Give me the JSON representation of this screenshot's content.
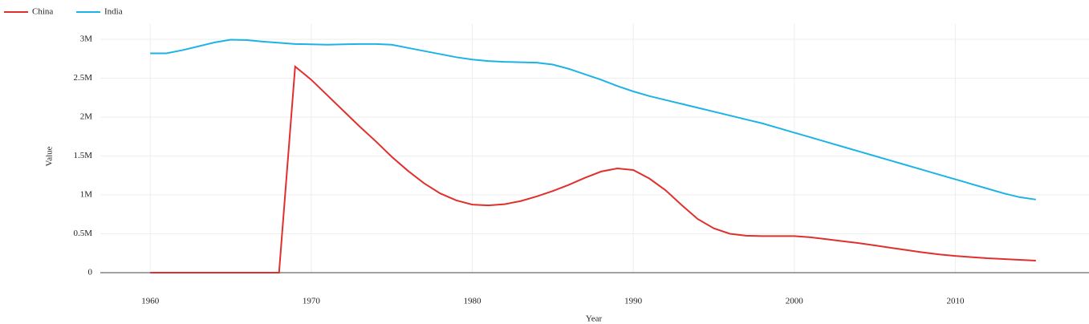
{
  "chart_data": {
    "type": "line",
    "x_label": "Year",
    "y_label": "Value",
    "x": [
      1960,
      1961,
      1962,
      1963,
      1964,
      1965,
      1966,
      1967,
      1968,
      1969,
      1970,
      1971,
      1972,
      1973,
      1974,
      1975,
      1976,
      1977,
      1978,
      1979,
      1980,
      1981,
      1982,
      1983,
      1984,
      1985,
      1986,
      1987,
      1988,
      1989,
      1990,
      1991,
      1992,
      1993,
      1994,
      1995,
      1996,
      1997,
      1998,
      1999,
      2000,
      2001,
      2002,
      2003,
      2004,
      2005,
      2006,
      2007,
      2008,
      2009,
      2010,
      2011,
      2012,
      2013,
      2014,
      2015
    ],
    "series": [
      {
        "name": "China",
        "color": "#e0302d",
        "values": [
          0,
          0,
          0,
          0,
          0,
          0,
          0,
          0,
          0,
          2650000,
          2480000,
          2280000,
          2080000,
          1880000,
          1690000,
          1490000,
          1310000,
          1150000,
          1020000,
          930000,
          875000,
          865000,
          880000,
          920000,
          980000,
          1050000,
          1130000,
          1220000,
          1300000,
          1340000,
          1320000,
          1210000,
          1060000,
          870000,
          690000,
          570000,
          500000,
          475000,
          470000,
          470000,
          470000,
          455000,
          430000,
          405000,
          380000,
          350000,
          320000,
          290000,
          260000,
          235000,
          215000,
          200000,
          185000,
          175000,
          165000,
          155000
        ]
      },
      {
        "name": "India",
        "color": "#1cb3e6",
        "values": [
          2820000,
          2820000,
          2860000,
          2910000,
          2960000,
          2995000,
          2990000,
          2970000,
          2955000,
          2940000,
          2935000,
          2930000,
          2935000,
          2940000,
          2940000,
          2930000,
          2890000,
          2850000,
          2810000,
          2770000,
          2740000,
          2720000,
          2710000,
          2705000,
          2700000,
          2675000,
          2620000,
          2550000,
          2480000,
          2400000,
          2330000,
          2270000,
          2220000,
          2170000,
          2120000,
          2070000,
          2020000,
          1970000,
          1920000,
          1860000,
          1800000,
          1740000,
          1680000,
          1620000,
          1560000,
          1500000,
          1440000,
          1380000,
          1320000,
          1260000,
          1200000,
          1140000,
          1080000,
          1020000,
          970000,
          940000
        ]
      }
    ],
    "xlim": [
      1956.9,
      2018.3
    ],
    "xticks": [
      1960,
      1970,
      1980,
      1990,
      2000,
      2010
    ],
    "ylim": [
      0,
      3200000
    ],
    "yticks": [
      0,
      {
        "value": 500000,
        "label": "0.5M"
      },
      {
        "value": 1000000,
        "label": "1M"
      },
      {
        "value": 1500000,
        "label": "1.5M"
      },
      {
        "value": 2000000,
        "label": "2M"
      },
      {
        "value": 2500000,
        "label": "2.5M"
      },
      {
        "value": 3000000,
        "label": "3M"
      }
    ],
    "grid": true,
    "legend": "top-left"
  }
}
